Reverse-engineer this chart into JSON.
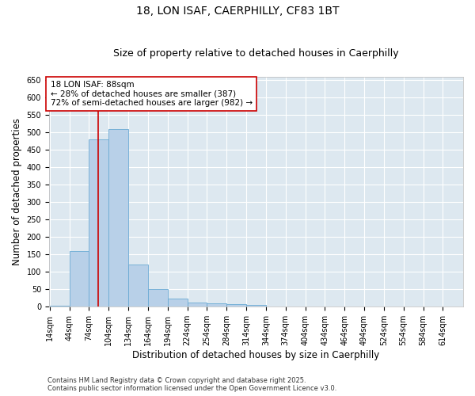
{
  "title_line1": "18, LON ISAF, CAERPHILLY, CF83 1BT",
  "title_line2": "Size of property relative to detached houses in Caerphilly",
  "xlabel": "Distribution of detached houses by size in Caerphilly",
  "ylabel": "Number of detached properties",
  "bin_labels": [
    "14sqm",
    "44sqm",
    "74sqm",
    "104sqm",
    "134sqm",
    "164sqm",
    "194sqm",
    "224sqm",
    "254sqm",
    "284sqm",
    "314sqm",
    "344sqm",
    "374sqm",
    "404sqm",
    "434sqm",
    "464sqm",
    "494sqm",
    "524sqm",
    "554sqm",
    "584sqm",
    "614sqm"
  ],
  "bin_values": [
    2,
    160,
    480,
    510,
    122,
    50,
    24,
    12,
    10,
    7,
    5,
    0,
    0,
    0,
    0,
    0,
    0,
    0,
    0,
    0,
    0
  ],
  "bin_width": 30,
  "bin_starts": [
    14,
    44,
    74,
    104,
    134,
    164,
    194,
    224,
    254,
    284,
    314,
    344,
    374,
    404,
    434,
    464,
    494,
    524,
    554,
    584,
    614
  ],
  "bar_color": "#b8d0e8",
  "bar_edge_color": "#6aaad4",
  "vline_x": 88,
  "vline_color": "#cc0000",
  "annotation_text": "18 LON ISAF: 88sqm\n← 28% of detached houses are smaller (387)\n72% of semi-detached houses are larger (982) →",
  "annotation_box_color": "#ffffff",
  "annotation_box_edge": "#cc0000",
  "ylim": [
    0,
    660
  ],
  "yticks": [
    0,
    50,
    100,
    150,
    200,
    250,
    300,
    350,
    400,
    450,
    500,
    550,
    600,
    650
  ],
  "background_color": "#dde8f0",
  "grid_color": "#ffffff",
  "fig_background": "#ffffff",
  "footer_line1": "Contains HM Land Registry data © Crown copyright and database right 2025.",
  "footer_line2": "Contains public sector information licensed under the Open Government Licence v3.0.",
  "title_fontsize": 10,
  "subtitle_fontsize": 9,
  "axis_label_fontsize": 8.5,
  "tick_fontsize": 7,
  "annotation_fontsize": 7.5,
  "footer_fontsize": 6
}
